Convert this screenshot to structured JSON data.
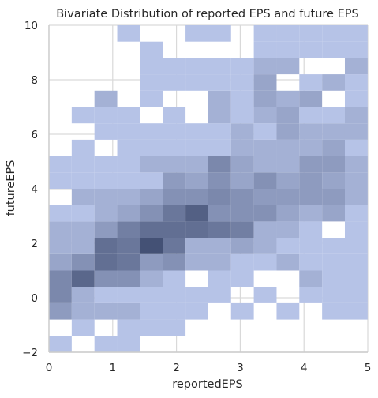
{
  "chart_data": {
    "type": "heatmap",
    "title": "Bivariate Distribution of reported EPS and future EPS",
    "xlabel": "reportedEPS",
    "ylabel": "futureEPS",
    "xlim": [
      0,
      5
    ],
    "ylim": [
      -2,
      10
    ],
    "x_ticks": [
      0,
      1,
      2,
      3,
      4,
      5
    ],
    "y_ticks": [
      -2,
      0,
      2,
      4,
      6,
      8,
      10
    ],
    "grid": true,
    "bins": {
      "x_count": 14,
      "y_count": 20,
      "x_width": 0.357,
      "y_height": 0.6
    },
    "color_low": "#b6c3e7",
    "color_high": "#3d4a6e",
    "count_max": 14,
    "cells_note": "each row: [x_bin_index, y_bin_index, count]; bins indexed from lower-left of axis ranges",
    "cells": [
      [
        0,
        -1,
        2
      ],
      [
        2,
        -1,
        1
      ],
      [
        5,
        -1,
        1
      ],
      [
        0,
        0,
        1
      ],
      [
        2,
        0,
        1
      ],
      [
        3,
        0,
        1
      ],
      [
        1,
        1,
        1
      ],
      [
        3,
        1,
        1
      ],
      [
        4,
        1,
        1
      ],
      [
        5,
        1,
        1
      ],
      [
        0,
        2,
        4
      ],
      [
        1,
        2,
        2
      ],
      [
        2,
        2,
        2
      ],
      [
        3,
        2,
        2
      ],
      [
        4,
        2,
        1
      ],
      [
        5,
        2,
        1
      ],
      [
        6,
        2,
        1
      ],
      [
        8,
        2,
        1
      ],
      [
        10,
        2,
        1
      ],
      [
        12,
        2,
        1
      ],
      [
        13,
        2,
        1
      ],
      [
        0,
        3,
        6
      ],
      [
        1,
        3,
        2
      ],
      [
        2,
        3,
        1
      ],
      [
        3,
        3,
        1
      ],
      [
        4,
        3,
        1
      ],
      [
        5,
        3,
        1
      ],
      [
        6,
        3,
        1
      ],
      [
        7,
        3,
        1
      ],
      [
        9,
        3,
        1
      ],
      [
        11,
        3,
        1
      ],
      [
        12,
        3,
        1
      ],
      [
        13,
        3,
        1
      ],
      [
        0,
        4,
        6
      ],
      [
        1,
        4,
        10
      ],
      [
        2,
        4,
        5
      ],
      [
        3,
        4,
        5
      ],
      [
        4,
        4,
        2
      ],
      [
        5,
        4,
        1
      ],
      [
        7,
        4,
        1
      ],
      [
        8,
        4,
        1
      ],
      [
        11,
        4,
        2
      ],
      [
        12,
        4,
        1
      ],
      [
        13,
        4,
        1
      ],
      [
        0,
        5,
        3
      ],
      [
        1,
        5,
        5
      ],
      [
        2,
        5,
        9
      ],
      [
        3,
        5,
        8
      ],
      [
        4,
        5,
        4
      ],
      [
        5,
        5,
        5
      ],
      [
        6,
        5,
        2
      ],
      [
        7,
        5,
        2
      ],
      [
        8,
        5,
        1
      ],
      [
        9,
        5,
        1
      ],
      [
        10,
        5,
        2
      ],
      [
        11,
        5,
        1
      ],
      [
        12,
        5,
        1
      ],
      [
        13,
        5,
        1
      ],
      [
        0,
        6,
        2
      ],
      [
        1,
        6,
        2
      ],
      [
        2,
        6,
        9
      ],
      [
        3,
        6,
        8
      ],
      [
        4,
        6,
        13
      ],
      [
        5,
        6,
        8
      ],
      [
        6,
        6,
        2
      ],
      [
        7,
        6,
        2
      ],
      [
        8,
        6,
        3
      ],
      [
        9,
        6,
        2
      ],
      [
        10,
        6,
        1
      ],
      [
        11,
        6,
        1
      ],
      [
        12,
        6,
        1
      ],
      [
        13,
        6,
        1
      ],
      [
        0,
        7,
        2
      ],
      [
        1,
        7,
        2
      ],
      [
        2,
        7,
        4
      ],
      [
        3,
        7,
        7
      ],
      [
        4,
        7,
        9
      ],
      [
        5,
        7,
        9
      ],
      [
        6,
        7,
        9
      ],
      [
        7,
        7,
        8
      ],
      [
        8,
        7,
        7
      ],
      [
        9,
        7,
        2
      ],
      [
        10,
        7,
        2
      ],
      [
        11,
        7,
        1
      ],
      [
        13,
        7,
        1
      ],
      [
        0,
        8,
        1
      ],
      [
        1,
        8,
        1
      ],
      [
        2,
        8,
        2
      ],
      [
        3,
        8,
        3
      ],
      [
        4,
        8,
        5
      ],
      [
        5,
        8,
        8
      ],
      [
        6,
        8,
        11
      ],
      [
        7,
        8,
        5
      ],
      [
        8,
        8,
        5
      ],
      [
        9,
        8,
        5
      ],
      [
        10,
        8,
        3
      ],
      [
        11,
        8,
        2
      ],
      [
        12,
        8,
        3
      ],
      [
        13,
        8,
        1
      ],
      [
        1,
        9,
        2
      ],
      [
        2,
        9,
        2
      ],
      [
        3,
        9,
        2
      ],
      [
        4,
        9,
        3
      ],
      [
        5,
        9,
        5
      ],
      [
        6,
        9,
        5
      ],
      [
        7,
        9,
        6
      ],
      [
        8,
        9,
        5
      ],
      [
        9,
        9,
        4
      ],
      [
        10,
        9,
        4
      ],
      [
        11,
        9,
        4
      ],
      [
        12,
        9,
        4
      ],
      [
        13,
        9,
        2
      ],
      [
        0,
        10,
        1
      ],
      [
        1,
        10,
        1
      ],
      [
        2,
        10,
        1
      ],
      [
        3,
        10,
        1
      ],
      [
        4,
        10,
        1
      ],
      [
        5,
        10,
        4
      ],
      [
        6,
        10,
        3
      ],
      [
        7,
        10,
        5
      ],
      [
        8,
        10,
        3
      ],
      [
        9,
        10,
        5
      ],
      [
        10,
        10,
        3
      ],
      [
        11,
        10,
        4
      ],
      [
        12,
        10,
        3
      ],
      [
        13,
        10,
        2
      ],
      [
        0,
        11,
        1
      ],
      [
        1,
        11,
        1
      ],
      [
        2,
        11,
        1
      ],
      [
        3,
        11,
        1
      ],
      [
        4,
        11,
        2
      ],
      [
        5,
        11,
        2
      ],
      [
        6,
        11,
        2
      ],
      [
        7,
        11,
        6
      ],
      [
        8,
        11,
        3
      ],
      [
        9,
        11,
        2
      ],
      [
        10,
        11,
        2
      ],
      [
        11,
        11,
        4
      ],
      [
        12,
        11,
        4
      ],
      [
        13,
        11,
        2
      ],
      [
        1,
        12,
        1
      ],
      [
        3,
        12,
        1
      ],
      [
        4,
        12,
        1
      ],
      [
        5,
        12,
        1
      ],
      [
        6,
        12,
        1
      ],
      [
        7,
        12,
        1
      ],
      [
        8,
        12,
        2
      ],
      [
        9,
        12,
        2
      ],
      [
        10,
        12,
        2
      ],
      [
        11,
        12,
        2
      ],
      [
        12,
        12,
        3
      ],
      [
        13,
        12,
        1
      ],
      [
        2,
        13,
        1
      ],
      [
        3,
        13,
        1
      ],
      [
        4,
        13,
        1
      ],
      [
        5,
        13,
        1
      ],
      [
        6,
        13,
        1
      ],
      [
        7,
        13,
        1
      ],
      [
        8,
        13,
        2
      ],
      [
        9,
        13,
        1
      ],
      [
        10,
        13,
        3
      ],
      [
        11,
        13,
        2
      ],
      [
        12,
        13,
        2
      ],
      [
        13,
        13,
        2
      ],
      [
        1,
        14,
        1
      ],
      [
        2,
        14,
        1
      ],
      [
        3,
        14,
        1
      ],
      [
        5,
        14,
        1
      ],
      [
        7,
        14,
        2
      ],
      [
        8,
        14,
        1
      ],
      [
        9,
        14,
        2
      ],
      [
        10,
        14,
        3
      ],
      [
        11,
        14,
        1
      ],
      [
        12,
        14,
        1
      ],
      [
        13,
        14,
        2
      ],
      [
        2,
        15,
        2
      ],
      [
        4,
        15,
        1
      ],
      [
        7,
        15,
        2
      ],
      [
        8,
        15,
        1
      ],
      [
        9,
        15,
        3
      ],
      [
        10,
        15,
        2
      ],
      [
        11,
        15,
        3
      ],
      [
        13,
        15,
        1
      ],
      [
        4,
        16,
        1
      ],
      [
        5,
        16,
        1
      ],
      [
        6,
        16,
        1
      ],
      [
        7,
        16,
        1
      ],
      [
        8,
        16,
        1
      ],
      [
        9,
        16,
        3
      ],
      [
        11,
        16,
        1
      ],
      [
        12,
        16,
        2
      ],
      [
        13,
        16,
        1
      ],
      [
        4,
        17,
        1
      ],
      [
        5,
        17,
        1
      ],
      [
        6,
        17,
        1
      ],
      [
        7,
        17,
        1
      ],
      [
        8,
        17,
        1
      ],
      [
        9,
        17,
        2
      ],
      [
        10,
        17,
        2
      ],
      [
        13,
        17,
        2
      ],
      [
        4,
        18,
        1
      ],
      [
        9,
        18,
        1
      ],
      [
        10,
        18,
        1
      ],
      [
        11,
        18,
        1
      ],
      [
        12,
        18,
        1
      ],
      [
        13,
        18,
        1
      ],
      [
        3,
        19,
        1
      ],
      [
        6,
        19,
        1
      ],
      [
        7,
        19,
        1
      ],
      [
        9,
        19,
        1
      ],
      [
        10,
        19,
        1
      ],
      [
        11,
        19,
        1
      ],
      [
        12,
        19,
        1
      ],
      [
        13,
        19,
        1
      ]
    ]
  }
}
